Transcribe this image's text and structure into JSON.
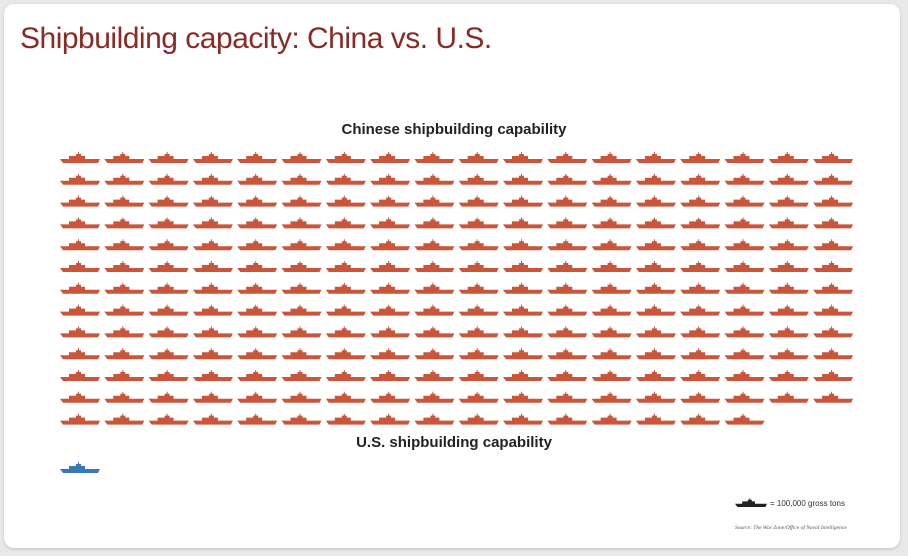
{
  "title": "Shipbuilding capacity: China vs. U.S.",
  "colors": {
    "title": "#8a2a26",
    "china": "#c9553a",
    "us": "#3b78b8",
    "legend_icon": "#222222"
  },
  "legend": {
    "icon": "ship-icon",
    "label": "= 100,000 gross tons"
  },
  "source": "Source: The War Zone/Office of Naval Intelligence",
  "chart_data": [
    {
      "type": "pictograph",
      "title": "Chinese shipbuilding capability",
      "unit": "100,000 gross tons",
      "value": 232,
      "icons_per_row": 18,
      "color": "#c9553a"
    },
    {
      "type": "pictograph",
      "title": "U.S. shipbuilding capability",
      "unit": "100,000 gross tons",
      "value": 1,
      "icons_per_row": 18,
      "color": "#3b78b8"
    }
  ]
}
